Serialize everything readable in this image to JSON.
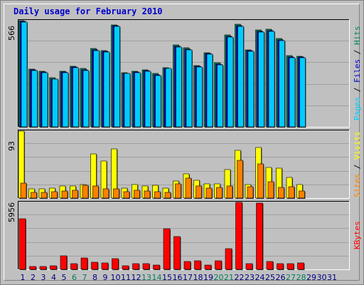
{
  "chart_data": {
    "type": "bar",
    "title": "Daily usage for February 2010",
    "categories": [
      "1",
      "2",
      "3",
      "4",
      "5",
      "6",
      "7",
      "8",
      "9",
      "10",
      "11",
      "12",
      "13",
      "14",
      "15",
      "16",
      "17",
      "18",
      "19",
      "20",
      "21",
      "22",
      "23",
      "24",
      "25",
      "26",
      "27",
      "28",
      "29",
      "30",
      "31"
    ],
    "weekend_color": "#00805c",
    "weekday_color": "#000080",
    "weekend_days": [
      "6",
      "7",
      "13",
      "14",
      "20",
      "21",
      "27",
      "28"
    ],
    "panels": [
      {
        "id": "hits-files-pages",
        "ymax_label": "566",
        "ymax": 566,
        "ylabel_parts": [
          {
            "text": "Pages",
            "color": "#00ccff"
          },
          {
            "text": " / ",
            "color": "#000000"
          },
          {
            "text": "Files",
            "color": "#0000cc"
          },
          {
            "text": " / ",
            "color": "#000000"
          },
          {
            "text": "Hits",
            "color": "#00805c"
          }
        ],
        "series": [
          {
            "name": "Hits",
            "color": "#00805c",
            "values": [
              566,
              306,
              296,
              262,
              296,
              324,
              311,
              419,
              407,
              542,
              289,
              297,
              303,
              283,
              317,
              436,
              420,
              326,
              396,
              340,
              489,
              546,
              412,
              515,
              521,
              472,
              378,
              377,
              null,
              null,
              null
            ]
          },
          {
            "name": "Files",
            "color": "#0000cc",
            "values": [
              562,
              303,
              292,
              256,
              293,
              320,
              305,
              412,
              401,
              538,
              286,
              293,
              299,
              278,
              313,
              431,
              414,
              322,
              392,
              336,
              484,
              541,
              407,
              508,
              514,
              465,
              373,
              372,
              null,
              null,
              null
            ]
          },
          {
            "name": "Pages",
            "color": "#00ccff",
            "values": [
              558,
              300,
              290,
              253,
              290,
              316,
              300,
              408,
              398,
              535,
              283,
              290,
              296,
              275,
              310,
              427,
              410,
              318,
              388,
              332,
              480,
              537,
              403,
              505,
              510,
              461,
              370,
              368,
              null,
              null,
              null
            ]
          }
        ]
      },
      {
        "id": "visits-sites",
        "ymax_label": "93",
        "ymax": 93,
        "ylabel_parts": [
          {
            "text": "Sites",
            "color": "#ff8000"
          },
          {
            "text": " / ",
            "color": "#000000"
          },
          {
            "text": "Visits",
            "color": "#ffff00"
          }
        ],
        "series": [
          {
            "name": "Visits",
            "color": "#ffff00",
            "values": [
              93,
              13,
              13,
              14,
              17,
              17,
              19,
              61,
              51,
              68,
              14,
              19,
              17,
              18,
              14,
              24,
              34,
              25,
              20,
              20,
              40,
              66,
              19,
              70,
              43,
              42,
              29,
              19,
              null,
              null,
              null
            ]
          },
          {
            "name": "Sites",
            "color": "#ff8000",
            "values": [
              21,
              8,
              8,
              9,
              10,
              11,
              18,
              17,
              13,
              13,
              9,
              11,
              10,
              9,
              8,
              20,
              28,
              17,
              14,
              15,
              17,
              52,
              16,
              47,
              23,
              15,
              16,
              10,
              null,
              null,
              null
            ]
          }
        ]
      },
      {
        "id": "kbytes",
        "ymax_label": "5956",
        "ymax": 5956,
        "ylabel_parts": [
          {
            "text": "KBytes",
            "color": "#ff0000"
          }
        ],
        "series": [
          {
            "name": "KBytes",
            "color": "#ff0000",
            "values": [
              4500,
              280,
              260,
              290,
              1200,
              480,
              1000,
              640,
              560,
              940,
              330,
              500,
              490,
              400,
              3600,
              2900,
              700,
              780,
              380,
              750,
              1850,
              5956,
              500,
              5900,
              700,
              520,
              480,
              550,
              null,
              null,
              null
            ]
          }
        ]
      }
    ]
  }
}
